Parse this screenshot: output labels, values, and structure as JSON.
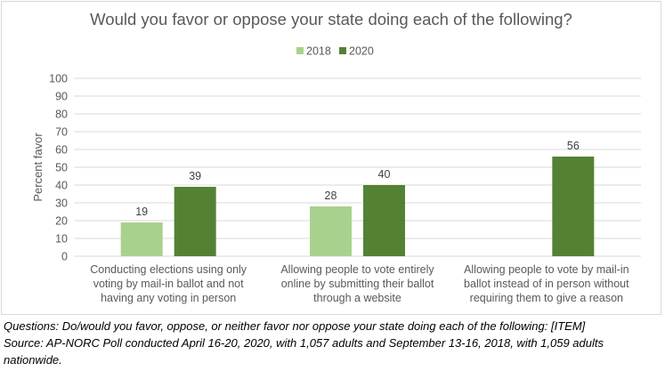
{
  "chart_data": {
    "type": "bar",
    "title": "Would you favor or oppose your state doing each of the following?",
    "ylabel": "Percent favor",
    "xlabel": "",
    "ylim": [
      0,
      100
    ],
    "yticks": [
      "0",
      "10",
      "20",
      "30",
      "40",
      "50",
      "60",
      "70",
      "80",
      "90",
      "100"
    ],
    "grid": true,
    "legend_placement": "top-center",
    "categories": [
      [
        "Conducting elections using only",
        "voting by mail-in ballot and not",
        "having any voting in person"
      ],
      [
        "Allowing people to vote entirely",
        "online by submitting their ballot",
        "through a website"
      ],
      [
        "Allowing people to vote by mail-in",
        "ballot instead of in person without",
        "requiring them to give a reason"
      ]
    ],
    "series": [
      {
        "name": "2018",
        "color": "#a9d18e",
        "values": [
          19,
          28,
          null
        ],
        "labels": [
          "19",
          "28",
          ""
        ]
      },
      {
        "name": "2020",
        "color": "#548235",
        "values": [
          39,
          40,
          56
        ],
        "labels": [
          "39",
          "40",
          "56"
        ]
      }
    ]
  },
  "footnote": {
    "questions": "Questions: Do/would you favor, oppose, or neither favor nor oppose your state doing each of the following: [ITEM]",
    "source_line1": "Source: AP-NORC Poll conducted April 16-20, 2020, with 1,057 adults and September 13-16, 2018, with 1,059 adults",
    "source_line2": "nationwide."
  }
}
